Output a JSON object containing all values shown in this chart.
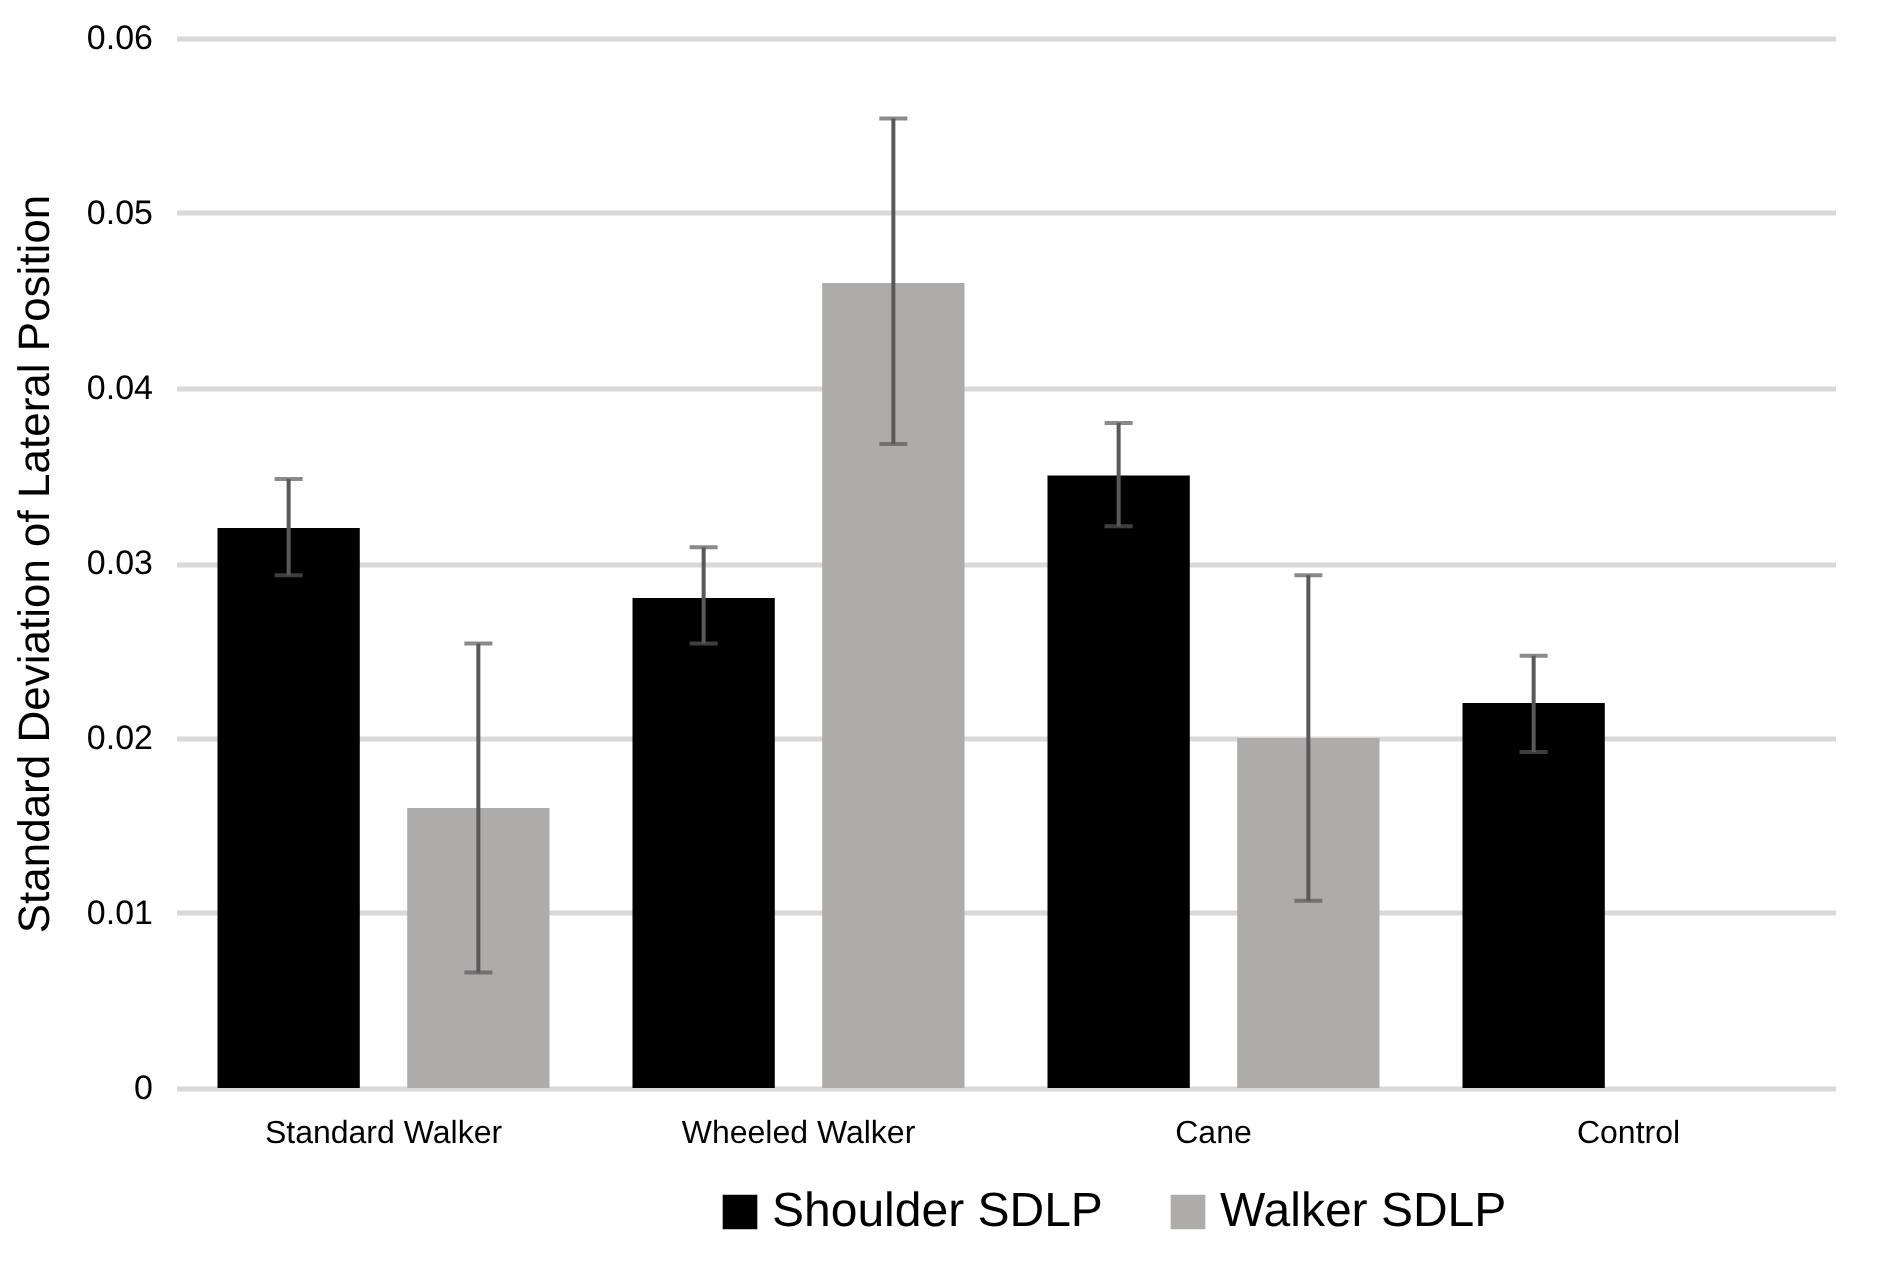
{
  "chart_data": {
    "type": "bar",
    "ylabel": "Standard Deviation of Lateral Position",
    "categories": [
      "Standard Walker",
      "Wheeled Walker",
      "Cane",
      "Control"
    ],
    "series": [
      {
        "name": "Shoulder SDLP",
        "color": "#000000",
        "values": [
          0.032,
          0.028,
          0.035,
          0.022
        ],
        "errors": [
          [
            0.0293,
            0.0348
          ],
          [
            0.0254,
            0.0309
          ],
          [
            0.0321,
            0.038
          ],
          [
            0.0192,
            0.0247
          ]
        ]
      },
      {
        "name": "Walker SDLP",
        "color": "#aeabab",
        "values": [
          0.016,
          0.046,
          0.02,
          null
        ],
        "errors": [
          [
            0.0066,
            0.0254
          ],
          [
            0.0368,
            0.0554
          ],
          [
            0.0107,
            0.0293
          ],
          null
        ]
      }
    ],
    "ylim": [
      0,
      0.06
    ],
    "yticks": [
      0,
      0.01,
      0.02,
      0.03,
      0.04,
      0.05,
      0.06
    ],
    "grid": "y",
    "legend": "bottom"
  }
}
